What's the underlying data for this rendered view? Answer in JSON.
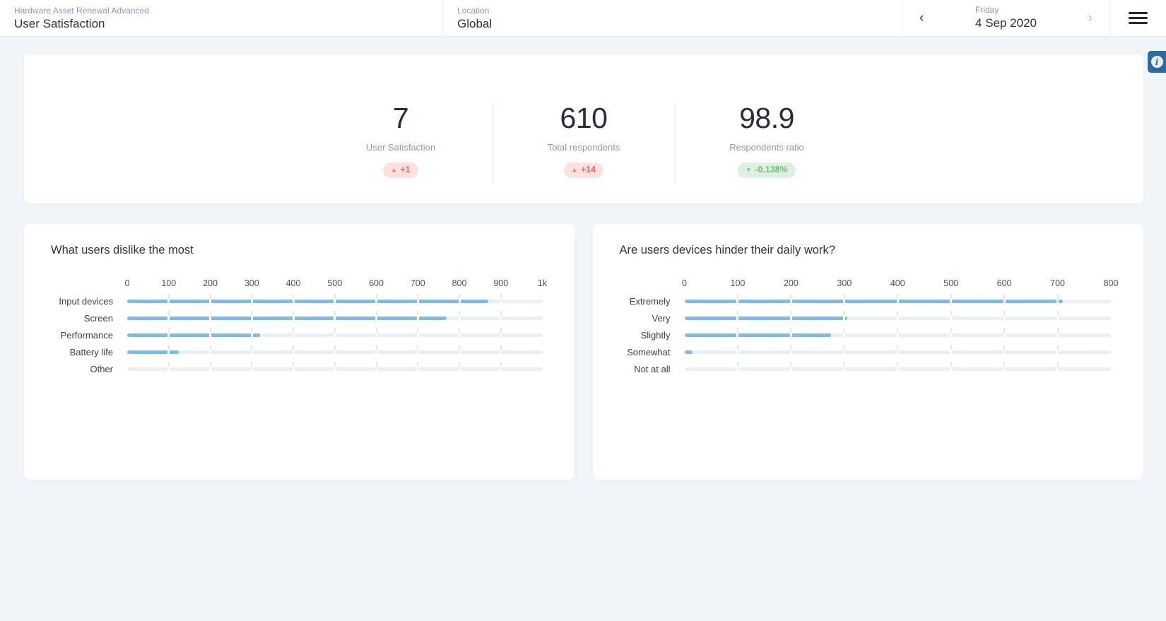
{
  "header": {
    "app_subtitle": "Hardware Asset Renewal Advanced",
    "app_title": "User Satisfaction",
    "location_label": "Location",
    "location_value": "Global",
    "date_weekday": "Friday",
    "date_value": "4 Sep 2020",
    "icons": {
      "prev": "‹",
      "next": "›",
      "up": "▲",
      "down": "▼",
      "info": "i"
    }
  },
  "kpis": [
    {
      "value": "7",
      "suffix": "",
      "label": "User Satisfaction",
      "delta": "+1",
      "direction": "up",
      "badge_color": "red"
    },
    {
      "value": "610",
      "suffix": "",
      "label": "Total respondents",
      "delta": "+14",
      "direction": "up",
      "badge_color": "red"
    },
    {
      "value": "98.9",
      "suffix": "%",
      "label": "Respondents ratio",
      "delta": "-0.138%",
      "direction": "down",
      "badge_color": "green"
    }
  ],
  "colors": {
    "page_background": "#f1f4f9",
    "card_background": "#ffffff",
    "bar_fill": "#87b9dc",
    "bar_track": "#e9edf4",
    "badge_red_bg": "#fce1e0",
    "badge_red_text": "#eb6a5f",
    "badge_green_bg": "#dff0e0",
    "badge_green_text": "#6fc074",
    "info_tab": "#2e6ba4"
  },
  "chart_data": [
    {
      "type": "bar",
      "orientation": "horizontal",
      "title": "What users dislike the most",
      "categories": [
        "Input devices",
        "Screen",
        "Performance",
        "Battery life",
        "Other"
      ],
      "values": [
        870,
        770,
        320,
        125,
        0
      ],
      "xlim": [
        0,
        1000
      ],
      "xticks": [
        0,
        100,
        200,
        300,
        400,
        500,
        600,
        700,
        800,
        900,
        1000
      ],
      "xtick_labels": [
        "0",
        "100",
        "200",
        "300",
        "400",
        "500",
        "600",
        "700",
        "800",
        "900",
        "1k"
      ],
      "grid": "segmented-ticks",
      "legend": "none"
    },
    {
      "type": "bar",
      "orientation": "horizontal",
      "title": "Are users devices hinder their daily work?",
      "categories": [
        "Extremely",
        "Very",
        "Slightly",
        "Somewhat",
        "Not at all"
      ],
      "values": [
        710,
        305,
        275,
        15,
        0
      ],
      "xlim": [
        0,
        800
      ],
      "xticks": [
        0,
        100,
        200,
        300,
        400,
        500,
        600,
        700,
        800
      ],
      "xtick_labels": [
        "0",
        "100",
        "200",
        "300",
        "400",
        "500",
        "600",
        "700",
        "800"
      ],
      "grid": "segmented-ticks",
      "legend": "none"
    }
  ]
}
